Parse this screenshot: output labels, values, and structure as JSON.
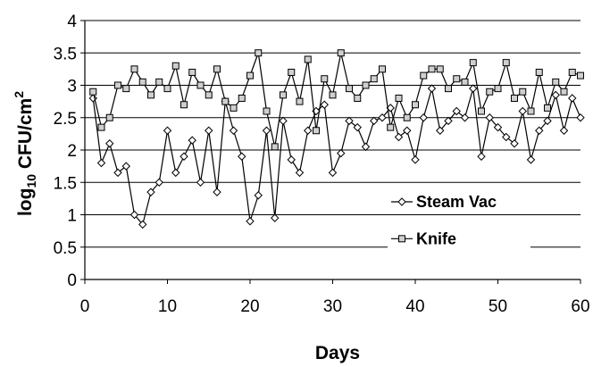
{
  "chart_data": {
    "type": "line",
    "xlabel": "Days",
    "ylabel_main": "log",
    "ylabel_sub": "10",
    "ylabel_rest": " CFU/cm",
    "ylabel_sup": "2",
    "xlim": [
      0,
      60
    ],
    "ylim": [
      0,
      4
    ],
    "xticks": [
      0,
      10,
      20,
      30,
      40,
      50,
      60
    ],
    "yticks": [
      0,
      0.5,
      1,
      1.5,
      2,
      2.5,
      3,
      3.5,
      4
    ],
    "ytick_labels": [
      "0",
      "0.5",
      "1",
      "1.5",
      "2",
      "2.5",
      "3",
      "3.5",
      "4"
    ],
    "grid": "horizontal",
    "legend_position": "center-right",
    "x": [
      1,
      2,
      3,
      4,
      5,
      6,
      7,
      8,
      9,
      10,
      11,
      12,
      13,
      14,
      15,
      16,
      17,
      18,
      19,
      20,
      21,
      22,
      23,
      24,
      25,
      26,
      27,
      28,
      29,
      30,
      31,
      32,
      33,
      34,
      35,
      36,
      37,
      38,
      39,
      40,
      41,
      42,
      43,
      44,
      45,
      46,
      47,
      48,
      49,
      50,
      51,
      52,
      53,
      54,
      55,
      56,
      57,
      58,
      59,
      60
    ],
    "series": [
      {
        "name": "Steam Vac",
        "marker": "diamond",
        "values": [
          2.8,
          1.8,
          2.1,
          1.65,
          1.75,
          1.0,
          0.85,
          1.35,
          1.5,
          2.3,
          1.65,
          1.9,
          2.15,
          1.5,
          2.3,
          1.35,
          2.75,
          2.3,
          1.9,
          0.9,
          1.3,
          2.3,
          0.95,
          2.45,
          1.85,
          1.65,
          2.3,
          2.6,
          2.7,
          1.65,
          1.95,
          2.45,
          2.35,
          2.05,
          2.45,
          2.5,
          2.65,
          2.2,
          2.3,
          1.85,
          2.5,
          2.95,
          2.3,
          2.45,
          2.6,
          2.5,
          2.95,
          1.9,
          2.5,
          2.35,
          2.2,
          2.1,
          2.6,
          1.85,
          2.3,
          2.45,
          2.85,
          2.3,
          2.8,
          2.5
        ]
      },
      {
        "name": "Knife",
        "marker": "square",
        "values": [
          2.9,
          2.35,
          2.5,
          3.0,
          2.95,
          3.25,
          3.05,
          2.85,
          3.05,
          2.95,
          3.3,
          2.7,
          3.2,
          3.0,
          2.85,
          3.25,
          2.75,
          2.65,
          2.8,
          3.15,
          3.5,
          2.6,
          2.05,
          2.85,
          3.2,
          2.75,
          3.4,
          2.3,
          3.1,
          2.85,
          3.5,
          2.95,
          2.8,
          3.0,
          3.1,
          3.25,
          2.35,
          2.8,
          2.5,
          2.7,
          3.15,
          3.25,
          3.25,
          2.95,
          3.1,
          3.05,
          3.35,
          2.6,
          2.9,
          2.95,
          3.35,
          2.8,
          2.9,
          2.6,
          3.2,
          2.65,
          3.05,
          2.9,
          3.2,
          3.15
        ]
      }
    ]
  }
}
